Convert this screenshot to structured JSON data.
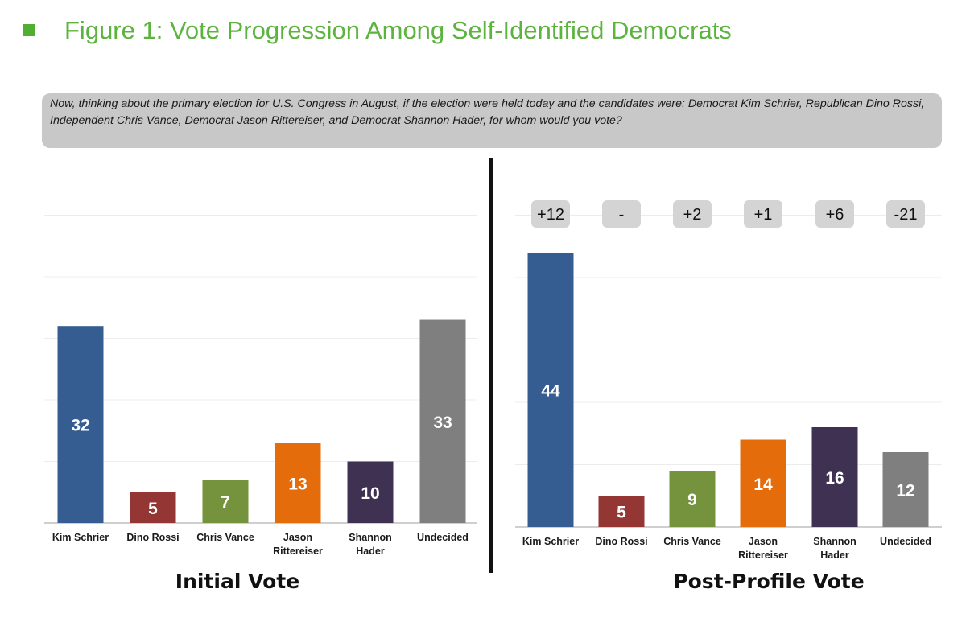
{
  "figure": {
    "title": "Figure 1: Vote Progression Among Self-Identified Democrats",
    "question": "Now, thinking about the primary election for U.S. Congress in August, if the election were held today and the candidates were: Democrat Kim Schrier, Republican Dino Rossi, Independent Chris Vance, Democrat Jason Rittereiser, and Democrat Shannon Hader, for whom would you vote?",
    "accent_color": "#5cb43e"
  },
  "chart_data": [
    {
      "type": "bar",
      "title": "Initial Vote",
      "categories": [
        "Kim Schrier",
        "Dino Rossi",
        "Chris Vance",
        "Jason Rittereiser",
        "Shannon Hader",
        "Undecided"
      ],
      "values": [
        32,
        5,
        7,
        13,
        10,
        33
      ],
      "colors": [
        "#355d91",
        "#943634",
        "#75923c",
        "#e46c0a",
        "#3f3151",
        "#7f7f7f"
      ],
      "ylim": [
        0,
        50
      ],
      "grid": true
    },
    {
      "type": "bar",
      "title": "Post-Profile Vote",
      "categories": [
        "Kim Schrier",
        "Dino Rossi",
        "Chris Vance",
        "Jason Rittereiser",
        "Shannon Hader",
        "Undecided"
      ],
      "values": [
        44,
        5,
        9,
        14,
        16,
        12
      ],
      "changes": [
        "+12",
        "-",
        "+2",
        "+1",
        "+6",
        "-21"
      ],
      "colors": [
        "#355d91",
        "#943634",
        "#75923c",
        "#e46c0a",
        "#3f3151",
        "#7f7f7f"
      ],
      "ylim": [
        0,
        50
      ],
      "grid": true
    }
  ]
}
